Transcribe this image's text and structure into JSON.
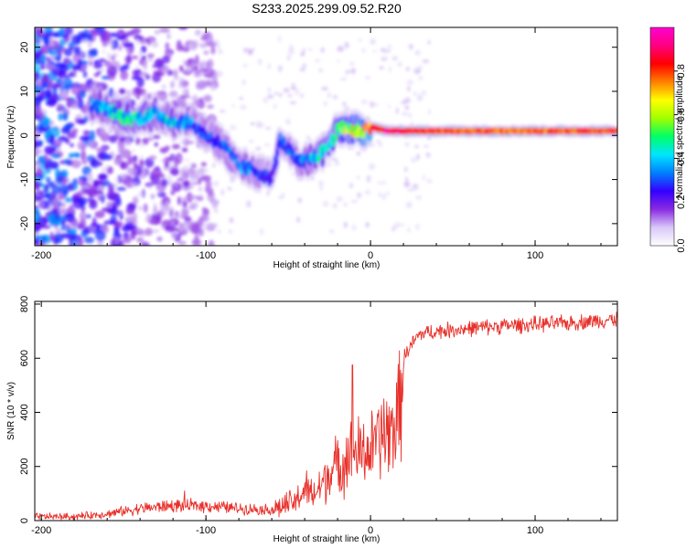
{
  "title": "S233.2025.299.09.52.R20",
  "chart_data": [
    {
      "type": "heatmap",
      "xlabel": "Height of straight line (km)",
      "ylabel": "Frequency (Hz)",
      "xlim": [
        -204,
        150
      ],
      "ylim": [
        -25,
        24.5
      ],
      "xticks": [
        -200,
        -100,
        0,
        100
      ],
      "yticks": [
        20,
        10,
        0,
        -10,
        -20
      ],
      "colorbar": {
        "label": "Normalized spectral amplitude",
        "range": [
          0,
          1
        ],
        "ticks": [
          0.0,
          0.2,
          0.4,
          0.6,
          0.8
        ],
        "colors": [
          "#ffffff",
          "#d8c8f8",
          "#8a2be2",
          "#3300ff",
          "#0080ff",
          "#00e5ff",
          "#00ff66",
          "#a0ff00",
          "#ffff00",
          "#ff8000",
          "#ff0000",
          "#ff0080",
          "#ff00d0"
        ]
      },
      "ridge": {
        "x": [
          -170,
          -160,
          -150,
          -140,
          -130,
          -120,
          -110,
          -100,
          -90,
          -80,
          -70,
          -60,
          -55,
          -50,
          -45,
          -40,
          -35,
          -30,
          -25,
          -20,
          -15,
          -10,
          -5,
          0,
          10,
          20,
          40,
          60,
          80,
          100,
          120,
          150
        ],
        "frequency": [
          7,
          6,
          4,
          4,
          5,
          3,
          3,
          0,
          -2,
          -7,
          -8,
          -10,
          -1,
          -3,
          -6,
          -6,
          -5,
          -4,
          -2,
          1,
          2,
          1,
          1,
          2,
          1,
          1,
          1,
          1,
          1,
          1,
          1,
          1
        ],
        "amplitude": [
          0.35,
          0.4,
          0.45,
          0.45,
          0.4,
          0.4,
          0.35,
          0.3,
          0.3,
          0.35,
          0.3,
          0.25,
          0.3,
          0.3,
          0.3,
          0.35,
          0.4,
          0.45,
          0.5,
          0.55,
          0.6,
          0.65,
          0.7,
          0.85,
          0.95,
          0.9,
          0.85,
          0.8,
          0.8,
          0.8,
          0.82,
          0.85
        ]
      }
    },
    {
      "type": "line",
      "xlabel": "Height of straight line (km)",
      "ylabel": "SNR (10 * v/v)",
      "xlim": [
        -204,
        150
      ],
      "ylim": [
        0,
        810
      ],
      "xticks": [
        -200,
        -100,
        0,
        100
      ],
      "yticks": [
        0,
        200,
        400,
        600,
        800
      ],
      "color": "#e8302a",
      "series": [
        {
          "x": [
            -204,
            -180,
            -160,
            -140,
            -120,
            -100,
            -80,
            -60,
            -50,
            -45,
            -40,
            -35,
            -30,
            -25,
            -20,
            -15,
            -10,
            -5,
            0,
            5,
            10,
            15,
            18,
            20,
            25,
            30,
            40,
            50,
            60,
            80,
            100,
            120,
            140,
            150
          ],
          "y": [
            15,
            15,
            25,
            45,
            55,
            55,
            45,
            40,
            60,
            70,
            120,
            90,
            130,
            180,
            200,
            230,
            250,
            250,
            260,
            300,
            320,
            350,
            420,
            600,
            650,
            690,
            700,
            705,
            710,
            720,
            725,
            730,
            740,
            745
          ]
        }
      ],
      "annotations": [
        {
          "x": -11,
          "y": 575,
          "note": "spike"
        },
        {
          "x": 8,
          "y": 450,
          "note": "spike"
        },
        {
          "x": -113,
          "y": 110,
          "note": "spike"
        }
      ]
    }
  ]
}
